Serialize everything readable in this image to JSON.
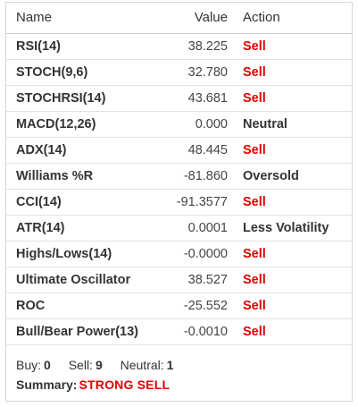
{
  "headers": {
    "name": "Name",
    "value": "Value",
    "action": "Action"
  },
  "rows": [
    {
      "name": "RSI(14)",
      "value": "38.225",
      "action": "Sell",
      "action_type": "sell"
    },
    {
      "name": "STOCH(9,6)",
      "value": "32.780",
      "action": "Sell",
      "action_type": "sell"
    },
    {
      "name": "STOCHRSI(14)",
      "value": "43.681",
      "action": "Sell",
      "action_type": "sell"
    },
    {
      "name": "MACD(12,26)",
      "value": "0.000",
      "action": "Neutral",
      "action_type": "neutral"
    },
    {
      "name": "ADX(14)",
      "value": "48.445",
      "action": "Sell",
      "action_type": "sell"
    },
    {
      "name": "Williams %R",
      "value": "-81.860",
      "action": "Oversold",
      "action_type": "neutral"
    },
    {
      "name": "CCI(14)",
      "value": "-91.3577",
      "action": "Sell",
      "action_type": "sell"
    },
    {
      "name": "ATR(14)",
      "value": "0.0001",
      "action": "Less Volatility",
      "action_type": "neutral"
    },
    {
      "name": "Highs/Lows(14)",
      "value": "-0.0000",
      "action": "Sell",
      "action_type": "sell"
    },
    {
      "name": "Ultimate Oscillator",
      "value": "38.527",
      "action": "Sell",
      "action_type": "sell"
    },
    {
      "name": "ROC",
      "value": "-25.552",
      "action": "Sell",
      "action_type": "sell"
    },
    {
      "name": "Bull/Bear Power(13)",
      "value": "-0.0010",
      "action": "Sell",
      "action_type": "sell"
    }
  ],
  "summary": {
    "buy_label": "Buy:",
    "buy_count": "0",
    "sell_label": "Sell:",
    "sell_count": "9",
    "neutral_label": "Neutral:",
    "neutral_count": "1",
    "summary_label": "Summary:",
    "summary_value": "STRONG SELL"
  },
  "colors": {
    "sell": "#e00000",
    "neutral": "#333333",
    "border": "#d6d6d6"
  }
}
